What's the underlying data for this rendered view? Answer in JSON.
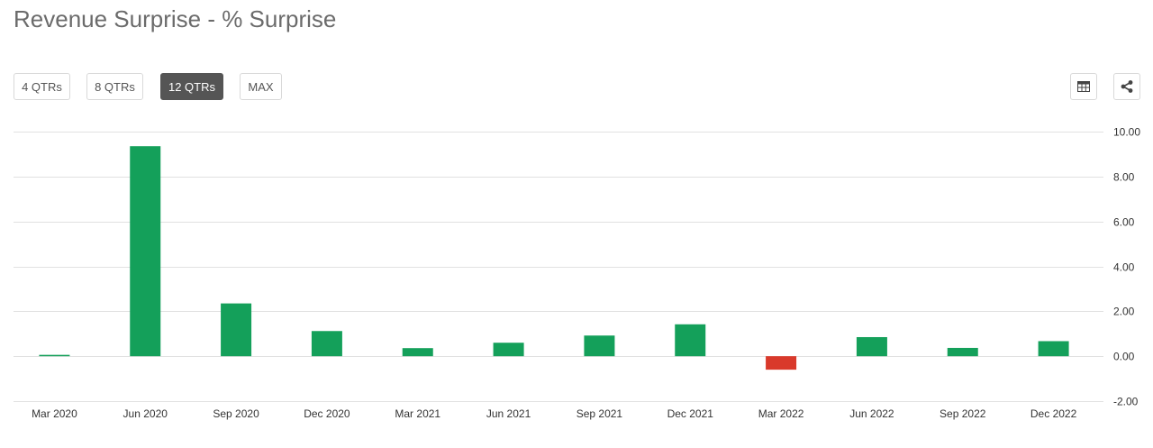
{
  "header": {
    "title": "Revenue Surprise - % Surprise"
  },
  "range_buttons": [
    {
      "label": "4 QTRs",
      "active": false
    },
    {
      "label": "8 QTRs",
      "active": false
    },
    {
      "label": "12 QTRs",
      "active": true
    },
    {
      "label": "MAX",
      "active": false
    }
  ],
  "toolbar": {
    "table_icon": "table-icon",
    "share_icon": "share-icon"
  },
  "colors": {
    "positive": "#14a05a",
    "negative": "#d9392b",
    "grid": "#e1e1e1",
    "active_button": "#555555"
  },
  "chart_data": {
    "type": "bar",
    "categories": [
      "Mar 2020",
      "Jun 2020",
      "Sep 2020",
      "Dec 2020",
      "Mar 2021",
      "Jun 2021",
      "Sep 2021",
      "Dec 2021",
      "Mar 2022",
      "Jun 2022",
      "Sep 2022",
      "Dec 2022"
    ],
    "values": [
      0.06,
      9.35,
      2.35,
      1.12,
      0.36,
      0.6,
      0.92,
      1.42,
      -0.6,
      0.85,
      0.37,
      0.67
    ],
    "y_tick_labels": [
      "10.00",
      "8.00",
      "6.00",
      "4.00",
      "2.00",
      "0.00",
      "-2.00"
    ],
    "y_ticks": [
      10,
      8,
      6,
      4,
      2,
      0,
      -2
    ],
    "ylim": [
      -2,
      10
    ],
    "title": "Revenue Surprise - % Surprise",
    "grid": true,
    "y_axis_position": "right"
  }
}
